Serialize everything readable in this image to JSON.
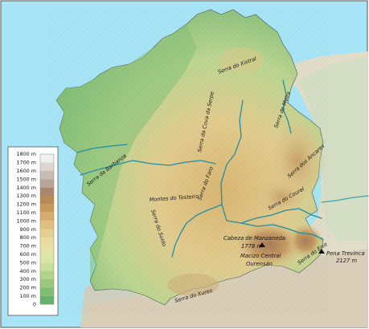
{
  "colors": {
    "sea": "#a7e4f5",
    "river": "#1f8fa6",
    "border": "#4b5a5a",
    "frame": "#555555"
  },
  "legend": {
    "unit_labels": [
      "1800 m",
      "1700 m",
      "1600 m",
      "1500 m",
      "1400 m",
      "1300 m",
      "1200 m",
      "1100 m",
      "1000 m",
      "900 m",
      "800 m",
      "700 m",
      "600 m",
      "500 m",
      "400 m",
      "300 m",
      "200 m",
      "100 m",
      "0"
    ],
    "swatches": [
      "#f0f0ee",
      "#ddd6d0",
      "#c8bcb2",
      "#b8a597",
      "#a8876c",
      "#b98a55",
      "#c89a5a",
      "#d4ad6c",
      "#dec07e",
      "#e4cf90",
      "#e9dc9e",
      "#e6e1a6",
      "#dde4a8",
      "#c9dd9c",
      "#b2d38e",
      "#9ac880",
      "#80bc74",
      "#69b06c"
    ]
  },
  "labels": {
    "xistral": "Serra do Xistral",
    "meira": "Serra de Meira",
    "coba_serpe": "Serra da Cova da Serpe",
    "barbanza": "Serra da Barbanza",
    "faro": "Serra do Faro",
    "testeiro": "Montes do Testeiro",
    "suido": "Serra do Suido",
    "ancares": "Serra dos Ancares",
    "courel": "Serra do Courel",
    "eixe": "Serra do Eixe",
    "manzaneda": "Cabeza de Manzaneda",
    "manzaneda_alt": "1778 m",
    "macizo_1": "Macizo Central",
    "macizo_2": "Ourensán",
    "trevinca": "Pena Trevinca",
    "trevinca_alt": "2127 m",
    "xures": "Serra do Xures"
  }
}
